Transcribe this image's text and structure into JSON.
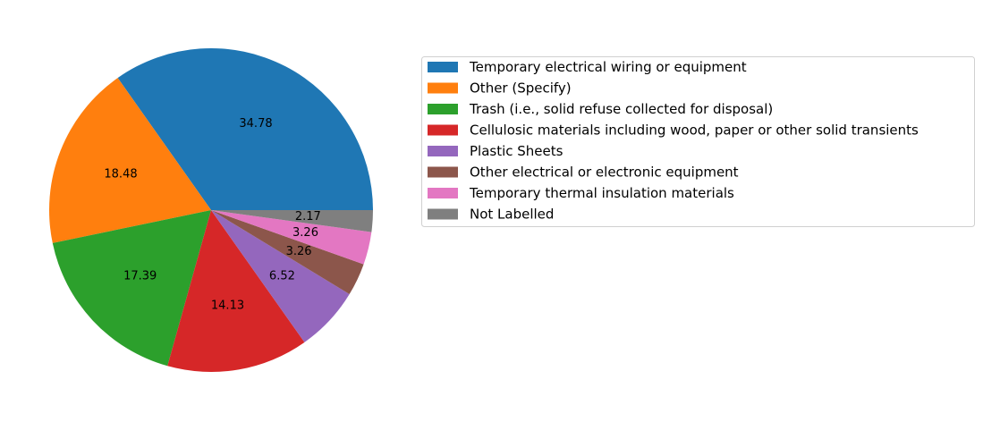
{
  "chart_data": {
    "type": "pie",
    "title": "",
    "slices": [
      {
        "label": "Temporary electrical wiring or equipment",
        "value": 34.78,
        "display": "34.78",
        "color": "#1f77b4"
      },
      {
        "label": "Other (Specify)",
        "value": 18.48,
        "display": "18.48",
        "color": "#ff7f0e"
      },
      {
        "label": "Trash (i.e., solid refuse collected for disposal)",
        "value": 17.39,
        "display": "17.39",
        "color": "#2ca02c"
      },
      {
        "label": "Cellulosic materials including wood, paper or other solid transients",
        "value": 14.13,
        "display": "14.13",
        "color": "#d62728"
      },
      {
        "label": "Plastic Sheets",
        "value": 6.52,
        "display": "6.52",
        "color": "#9467bd"
      },
      {
        "label": "Other electrical or electronic equipment",
        "value": 3.26,
        "display": "3.26",
        "color": "#8c564b"
      },
      {
        "label": "Temporary thermal insulation materials",
        "value": 3.26,
        "display": "3.26",
        "color": "#e377c2"
      },
      {
        "label": "Not Labelled",
        "value": 2.17,
        "display": "2.17",
        "color": "#7f7f7f"
      }
    ],
    "start_angle_deg": 0,
    "direction": "counterclockwise",
    "legend_position": "right"
  }
}
